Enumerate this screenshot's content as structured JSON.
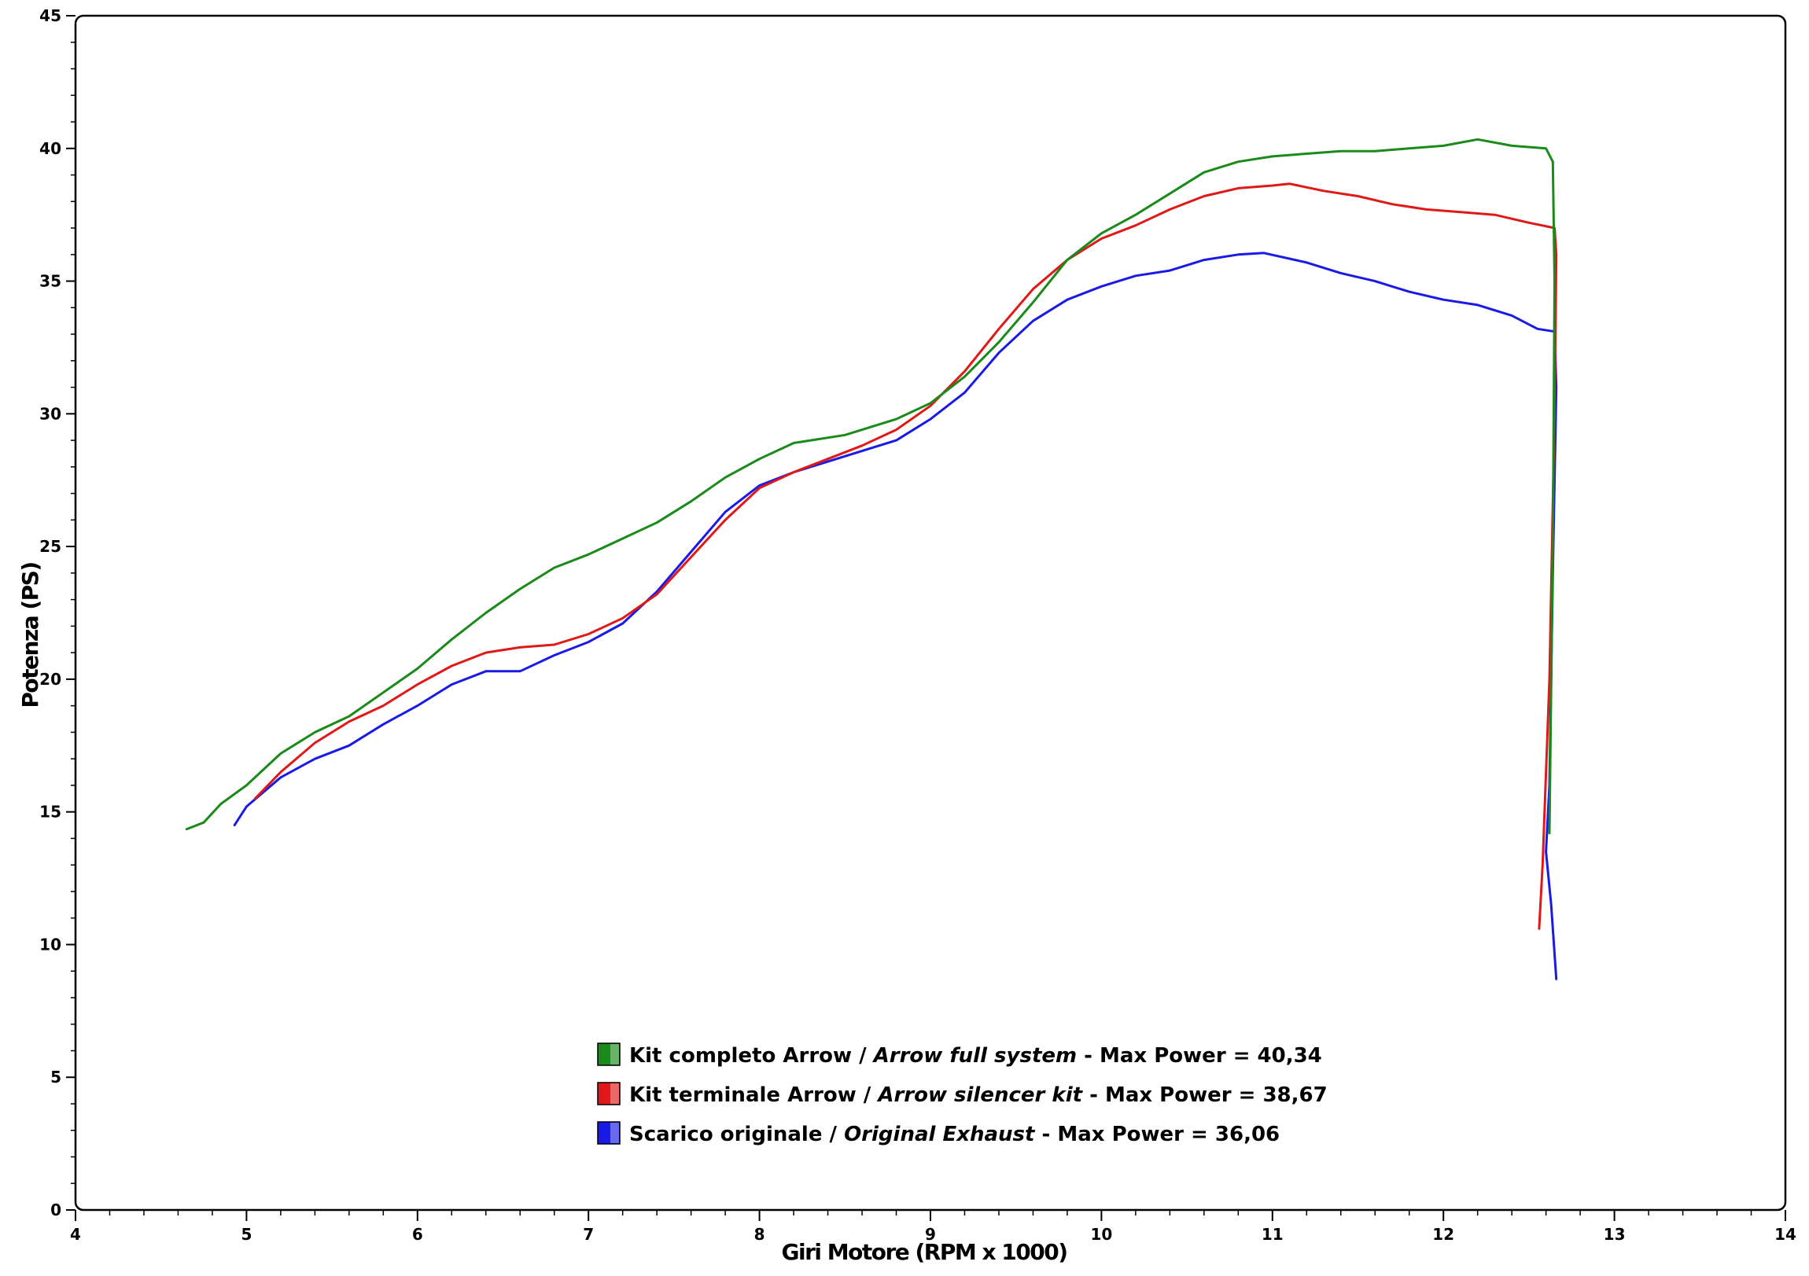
{
  "chart_data": {
    "type": "line",
    "xlabel": "Giri Motore (RPM x 1000)",
    "ylabel": "Potenza (PS)",
    "xlim": [
      4,
      14
    ],
    "ylim": [
      0,
      45
    ],
    "x_ticks": [
      "4",
      "5",
      "6",
      "7",
      "8",
      "9",
      "10",
      "11",
      "12",
      "13",
      "14"
    ],
    "y_ticks": [
      "0",
      "5",
      "10",
      "15",
      "20",
      "25",
      "30",
      "35",
      "40",
      "45"
    ],
    "grid": true,
    "legend_position": "bottom-center",
    "series": [
      {
        "name": "Kit completo Arrow",
        "name_en": "Arrow full system",
        "max_label": "- Max Power = 40,34",
        "color": "#1a8a1a",
        "points": [
          [
            4.65,
            14.35
          ],
          [
            4.75,
            14.6
          ],
          [
            4.85,
            15.3
          ],
          [
            5.0,
            16.0
          ],
          [
            5.2,
            17.2
          ],
          [
            5.4,
            18.0
          ],
          [
            5.6,
            18.6
          ],
          [
            5.8,
            19.5
          ],
          [
            6.0,
            20.4
          ],
          [
            6.2,
            21.5
          ],
          [
            6.4,
            22.5
          ],
          [
            6.6,
            23.4
          ],
          [
            6.8,
            24.2
          ],
          [
            7.0,
            24.7
          ],
          [
            7.2,
            25.3
          ],
          [
            7.4,
            25.9
          ],
          [
            7.6,
            26.7
          ],
          [
            7.8,
            27.6
          ],
          [
            8.0,
            28.3
          ],
          [
            8.2,
            28.9
          ],
          [
            8.5,
            29.2
          ],
          [
            8.8,
            29.8
          ],
          [
            9.0,
            30.4
          ],
          [
            9.2,
            31.4
          ],
          [
            9.4,
            32.7
          ],
          [
            9.6,
            34.2
          ],
          [
            9.8,
            35.8
          ],
          [
            10.0,
            36.8
          ],
          [
            10.2,
            37.5
          ],
          [
            10.4,
            38.3
          ],
          [
            10.6,
            39.1
          ],
          [
            10.8,
            39.5
          ],
          [
            11.0,
            39.7
          ],
          [
            11.2,
            39.8
          ],
          [
            11.4,
            39.9
          ],
          [
            11.6,
            39.9
          ],
          [
            11.8,
            40.0
          ],
          [
            12.0,
            40.1
          ],
          [
            12.2,
            40.34
          ],
          [
            12.4,
            40.1
          ],
          [
            12.6,
            40.0
          ],
          [
            12.64,
            39.5
          ],
          [
            12.65,
            35.0
          ],
          [
            12.64,
            25.0
          ],
          [
            12.62,
            14.2
          ]
        ]
      },
      {
        "name": "Kit terminale Arrow",
        "name_en": "Arrow silencer kit",
        "max_label": "- Max Power = 38,67",
        "color": "#e01818",
        "points": [
          [
            5.05,
            15.5
          ],
          [
            5.2,
            16.5
          ],
          [
            5.4,
            17.6
          ],
          [
            5.6,
            18.4
          ],
          [
            5.8,
            19.0
          ],
          [
            6.0,
            19.8
          ],
          [
            6.2,
            20.5
          ],
          [
            6.4,
            21.0
          ],
          [
            6.6,
            21.2
          ],
          [
            6.8,
            21.3
          ],
          [
            7.0,
            21.7
          ],
          [
            7.2,
            22.3
          ],
          [
            7.4,
            23.2
          ],
          [
            7.6,
            24.6
          ],
          [
            7.8,
            26.0
          ],
          [
            8.0,
            27.2
          ],
          [
            8.2,
            27.8
          ],
          [
            8.4,
            28.3
          ],
          [
            8.6,
            28.8
          ],
          [
            8.8,
            29.4
          ],
          [
            9.0,
            30.3
          ],
          [
            9.2,
            31.6
          ],
          [
            9.4,
            33.2
          ],
          [
            9.6,
            34.7
          ],
          [
            9.8,
            35.8
          ],
          [
            10.0,
            36.6
          ],
          [
            10.2,
            37.1
          ],
          [
            10.4,
            37.7
          ],
          [
            10.6,
            38.2
          ],
          [
            10.8,
            38.5
          ],
          [
            11.0,
            38.6
          ],
          [
            11.1,
            38.67
          ],
          [
            11.3,
            38.4
          ],
          [
            11.5,
            38.2
          ],
          [
            11.7,
            37.9
          ],
          [
            11.9,
            37.7
          ],
          [
            12.1,
            37.6
          ],
          [
            12.3,
            37.5
          ],
          [
            12.5,
            37.2
          ],
          [
            12.65,
            37.0
          ],
          [
            12.66,
            36.0
          ],
          [
            12.65,
            30.0
          ],
          [
            12.62,
            20.0
          ],
          [
            12.58,
            13.0
          ],
          [
            12.56,
            10.6
          ]
        ]
      },
      {
        "name": "Scarico originale",
        "name_en": "Original Exhaust",
        "max_label": "- Max Power = 36,06",
        "color": "#1a1ae6",
        "points": [
          [
            4.93,
            14.5
          ],
          [
            5.0,
            15.2
          ],
          [
            5.2,
            16.3
          ],
          [
            5.4,
            17.0
          ],
          [
            5.6,
            17.5
          ],
          [
            5.8,
            18.3
          ],
          [
            6.0,
            19.0
          ],
          [
            6.2,
            19.8
          ],
          [
            6.4,
            20.3
          ],
          [
            6.6,
            20.3
          ],
          [
            6.8,
            20.9
          ],
          [
            7.0,
            21.4
          ],
          [
            7.2,
            22.1
          ],
          [
            7.4,
            23.3
          ],
          [
            7.6,
            24.8
          ],
          [
            7.8,
            26.3
          ],
          [
            8.0,
            27.3
          ],
          [
            8.2,
            27.8
          ],
          [
            8.4,
            28.2
          ],
          [
            8.6,
            28.6
          ],
          [
            8.8,
            29.0
          ],
          [
            9.0,
            29.8
          ],
          [
            9.2,
            30.8
          ],
          [
            9.4,
            32.3
          ],
          [
            9.6,
            33.5
          ],
          [
            9.8,
            34.3
          ],
          [
            10.0,
            34.8
          ],
          [
            10.2,
            35.2
          ],
          [
            10.4,
            35.4
          ],
          [
            10.6,
            35.8
          ],
          [
            10.8,
            36.0
          ],
          [
            10.95,
            36.06
          ],
          [
            11.2,
            35.7
          ],
          [
            11.4,
            35.3
          ],
          [
            11.6,
            35.0
          ],
          [
            11.8,
            34.6
          ],
          [
            12.0,
            34.3
          ],
          [
            12.2,
            34.1
          ],
          [
            12.4,
            33.7
          ],
          [
            12.55,
            33.2
          ],
          [
            12.65,
            33.1
          ],
          [
            12.66,
            31.0
          ],
          [
            12.64,
            24.0
          ],
          [
            12.62,
            16.0
          ],
          [
            12.6,
            13.5
          ],
          [
            12.63,
            11.5
          ],
          [
            12.66,
            8.7
          ]
        ]
      }
    ]
  }
}
